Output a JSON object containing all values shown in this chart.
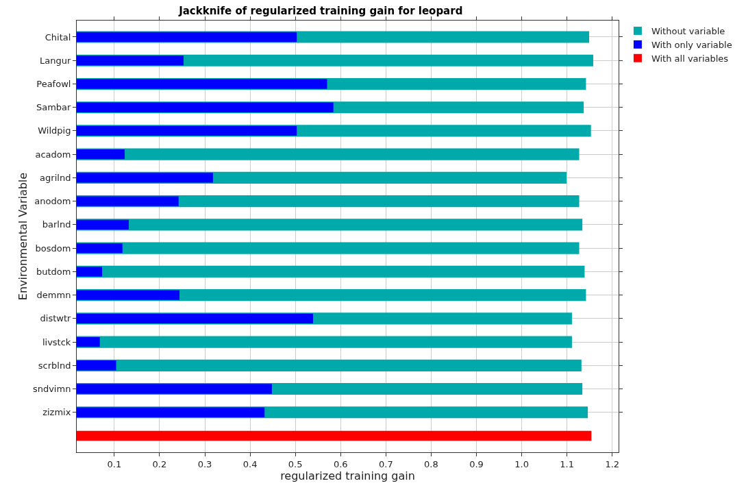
{
  "chart_data": {
    "type": "bar",
    "orientation": "horizontal",
    "title": "Jackknife of regularized training gain for leopard",
    "xlabel": "regularized training gain",
    "ylabel": "Environmental Variable",
    "categories": [
      "Chital",
      "Langur",
      "Peafowl",
      "Sambar",
      "Wildpig",
      "acadom",
      "agrilnd",
      "anodom",
      "barlnd",
      "bosdom",
      "butdom",
      "demmn",
      "distwtr",
      "livstck",
      "scrblnd",
      "sndvimn",
      "zizmix",
      null
    ],
    "series": [
      {
        "name": "Without variable",
        "color": "#00aaaa",
        "values": [
          1.149,
          1.158,
          1.142,
          1.137,
          1.153,
          1.127,
          1.099,
          1.127,
          1.134,
          1.127,
          1.139,
          1.142,
          1.111,
          1.111,
          1.132,
          1.134,
          1.146,
          null
        ]
      },
      {
        "name": "With only variable",
        "color": "#0000ff",
        "values": [
          0.503,
          0.253,
          0.57,
          0.584,
          0.503,
          0.123,
          0.318,
          0.242,
          0.132,
          0.118,
          0.073,
          0.244,
          0.539,
          0.068,
          0.104,
          0.448,
          0.432,
          null
        ]
      },
      {
        "name": "With all variables",
        "color": "#ff0000",
        "values": [
          null,
          null,
          null,
          null,
          null,
          null,
          null,
          null,
          null,
          null,
          null,
          null,
          null,
          null,
          null,
          null,
          null,
          1.154
        ]
      }
    ],
    "xlim": [
      0.017,
      1.214
    ],
    "xticks": [
      0.1,
      0.2,
      0.3,
      0.4,
      0.5,
      0.6,
      0.7,
      0.8,
      0.9,
      {
        "value": 1,
        "label": "1.0"
      },
      1.1,
      1.2
    ],
    "grid": true,
    "legend": "top right"
  }
}
